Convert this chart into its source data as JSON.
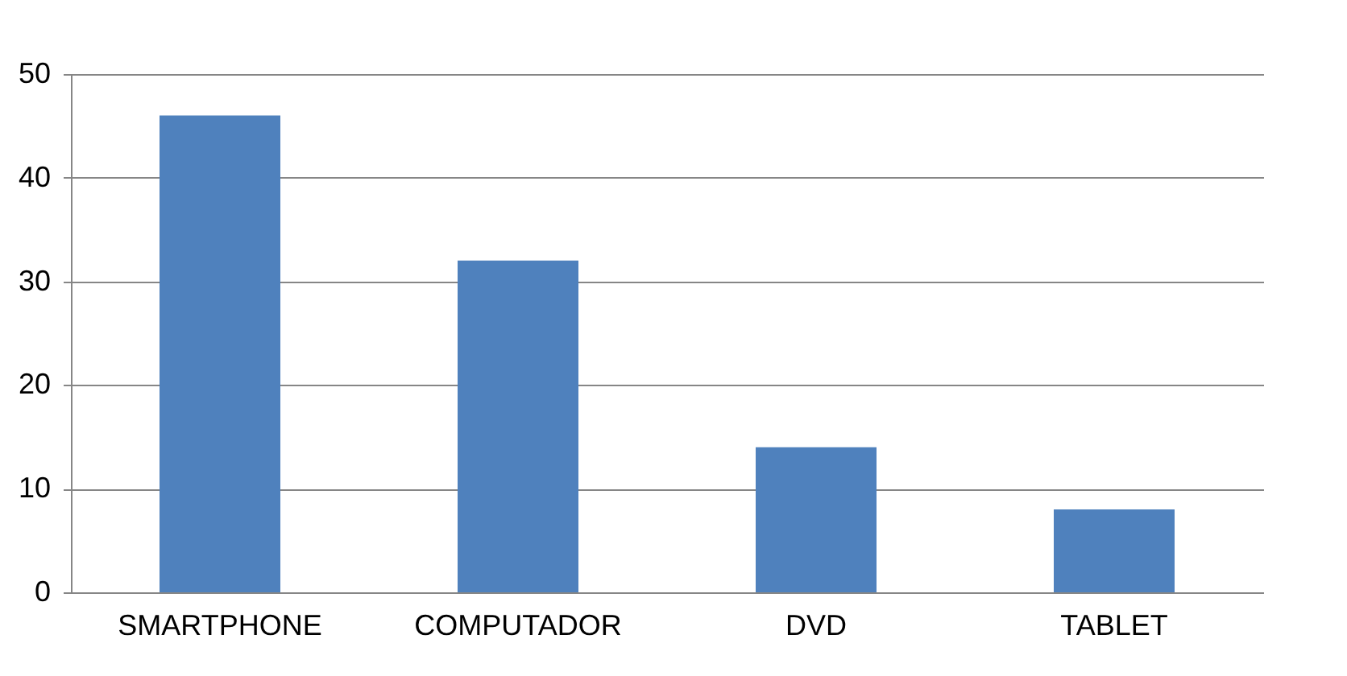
{
  "chart_data": {
    "type": "bar",
    "categories": [
      "SMARTPHONE",
      "COMPUTADOR",
      "DVD",
      "TABLET"
    ],
    "values": [
      46,
      32,
      14,
      8
    ],
    "color": "#4f81bd",
    "ylim": [
      0,
      50
    ],
    "yticks": [
      0,
      10,
      20,
      30,
      40,
      50
    ],
    "grid": "y"
  }
}
